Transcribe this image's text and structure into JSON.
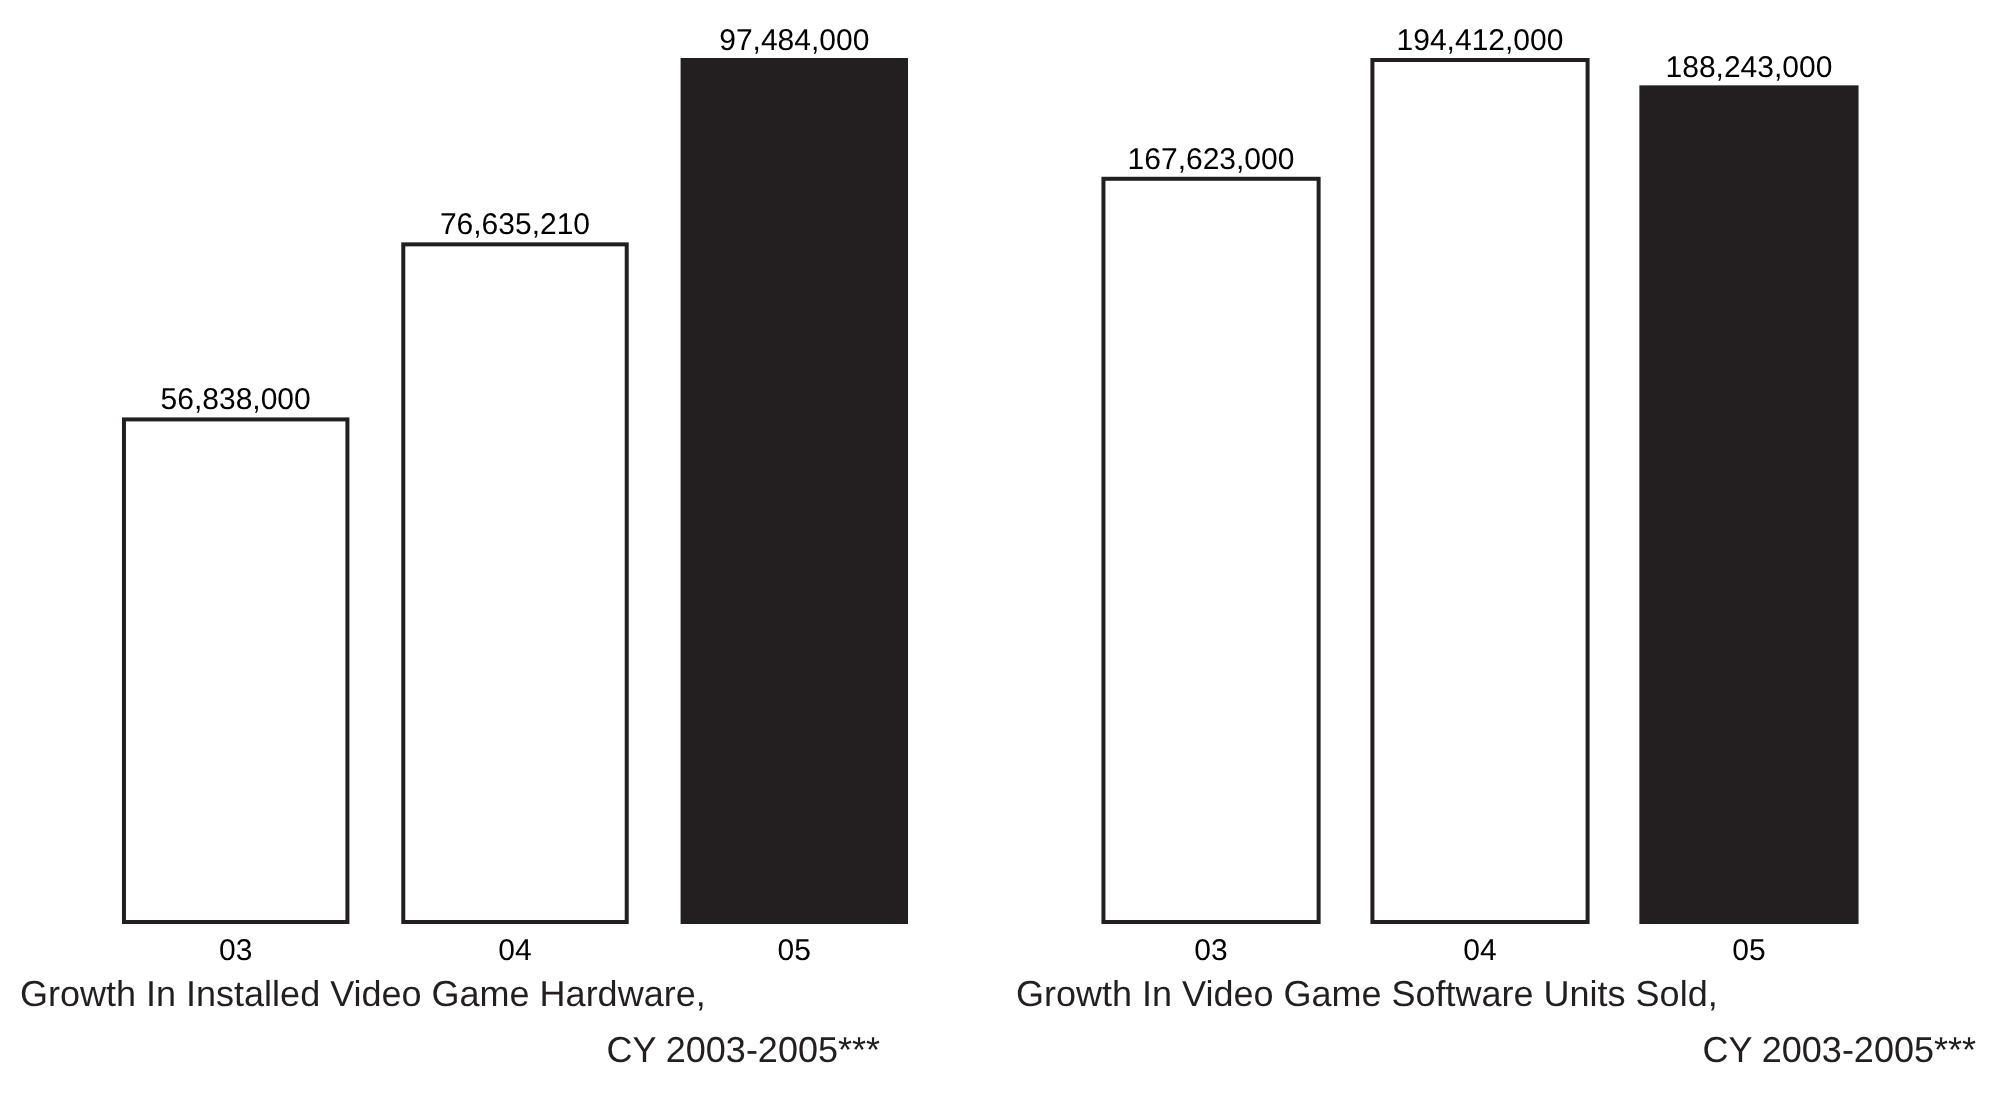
{
  "chart_data": [
    {
      "type": "bar",
      "title": "Growth In Installed Video Game Hardware,\nCY 2003-2005***",
      "categories": [
        "03",
        "04",
        "05"
      ],
      "values": [
        56838000,
        76635210,
        97484000
      ],
      "colors": [
        "#ffffff",
        "#ffffff",
        "#231f20"
      ],
      "value_labels": [
        "56,838,000",
        "76,635,210",
        "97,484,000"
      ]
    },
    {
      "type": "bar",
      "title": "Growth In Video Game Software Units Sold,\nCY 2003-2005***",
      "categories": [
        "03",
        "04",
        "05"
      ],
      "values": [
        167623000,
        194412000,
        188243000
      ],
      "colors": [
        "#ffffff",
        "#ffffff",
        "#231f20"
      ],
      "value_labels": [
        "167,623,000",
        "194,412,000",
        "188,243,000"
      ]
    }
  ]
}
